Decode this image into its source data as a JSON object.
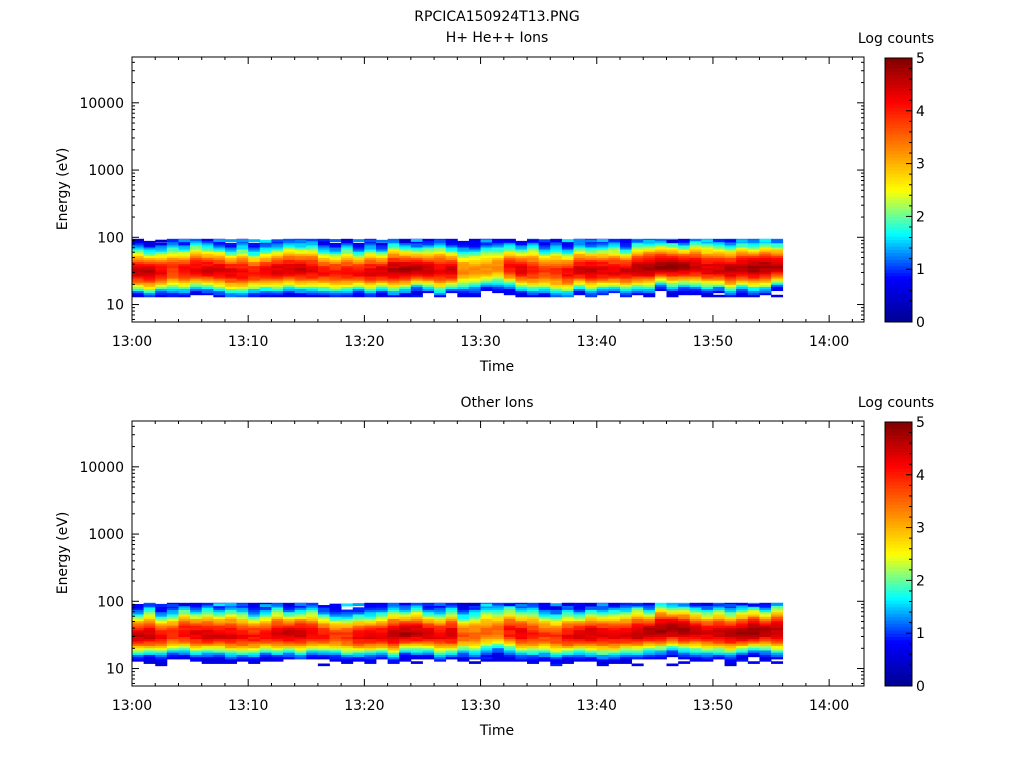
{
  "figure": {
    "title": "RPCICA150924T13.PNG"
  },
  "colormap": {
    "stops": [
      "#00008f",
      "#0000ff",
      "#00ffff",
      "#ffff00",
      "#ff8000",
      "#ff0000",
      "#800000"
    ]
  },
  "chart_data": [
    {
      "type": "heatmap",
      "title": "H+ He++ Ions",
      "xlabel": "Time",
      "ylabel": "Energy (eV)",
      "colorbar_label": "Log counts",
      "colorbar_range": [
        0,
        5
      ],
      "colorbar_ticks": [
        "0",
        "1",
        "2",
        "3",
        "4",
        "5"
      ],
      "x_ticks": [
        "13:00",
        "13:10",
        "13:20",
        "13:30",
        "13:40",
        "13:50",
        "14:00"
      ],
      "xlim_minutes": [
        0,
        63
      ],
      "y_scale": "log",
      "ylim": [
        5.5,
        48000
      ],
      "y_ticks": [
        {
          "value": 10,
          "label": "10"
        },
        {
          "value": 100,
          "label": "100"
        },
        {
          "value": 1000,
          "label": "1000"
        },
        {
          "value": 10000,
          "label": "10000"
        }
      ],
      "grid": false,
      "data_time_range_minutes": [
        0,
        56
      ],
      "data_energy_range_eV": [
        13,
        95
      ],
      "profile_peak_energy_eV": [
        30,
        30,
        30,
        32,
        33,
        33,
        32,
        32,
        31,
        30,
        30,
        31,
        32,
        33,
        33,
        32,
        31,
        31,
        30,
        30,
        30,
        31,
        32,
        33,
        34,
        33,
        32,
        32,
        32,
        32,
        35,
        36,
        35,
        33,
        32,
        32,
        30,
        30,
        32,
        33,
        32,
        31,
        32,
        33,
        35,
        37,
        38,
        37,
        36,
        34,
        33,
        33,
        34,
        35,
        36,
        36
      ],
      "profile_peak_log_counts": [
        4.5,
        4.6,
        4.3,
        3.9,
        4.2,
        4.3,
        4.4,
        4.4,
        4.3,
        4.2,
        4.1,
        4.2,
        4.4,
        4.5,
        4.5,
        4.3,
        4.1,
        4.0,
        4.0,
        4.2,
        4.3,
        4.4,
        4.6,
        4.7,
        4.6,
        4.5,
        4.3,
        4.5,
        3.3,
        3.3,
        3.3,
        3.3,
        4.1,
        4.3,
        4.0,
        3.8,
        3.9,
        4.2,
        4.4,
        4.5,
        4.4,
        4.3,
        4.4,
        4.6,
        4.7,
        4.8,
        4.8,
        4.7,
        4.5,
        4.4,
        4.5,
        4.6,
        4.7,
        4.8,
        4.7,
        4.6
      ]
    },
    {
      "type": "heatmap",
      "title": "Other Ions",
      "xlabel": "Time",
      "ylabel": "Energy (eV)",
      "colorbar_label": "Log counts",
      "colorbar_range": [
        0,
        5
      ],
      "colorbar_ticks": [
        "0",
        "1",
        "2",
        "3",
        "4",
        "5"
      ],
      "x_ticks": [
        "13:00",
        "13:10",
        "13:20",
        "13:30",
        "13:40",
        "13:50",
        "14:00"
      ],
      "xlim_minutes": [
        0,
        63
      ],
      "y_scale": "log",
      "ylim": [
        5.5,
        48000
      ],
      "y_ticks": [
        {
          "value": 10,
          "label": "10"
        },
        {
          "value": 100,
          "label": "100"
        },
        {
          "value": 1000,
          "label": "1000"
        },
        {
          "value": 10000,
          "label": "10000"
        }
      ],
      "grid": false,
      "data_time_range_minutes": [
        0,
        56
      ],
      "data_energy_range_eV": [
        11,
        95
      ],
      "profile_peak_energy_eV": [
        31,
        31,
        30,
        32,
        33,
        33,
        32,
        32,
        31,
        30,
        30,
        31,
        32,
        33,
        33,
        32,
        31,
        31,
        30,
        30,
        30,
        31,
        32,
        33,
        34,
        33,
        32,
        32,
        32,
        32,
        35,
        36,
        35,
        33,
        32,
        32,
        30,
        30,
        32,
        33,
        32,
        31,
        32,
        33,
        35,
        37,
        38,
        37,
        36,
        34,
        33,
        33,
        34,
        35,
        36,
        36
      ],
      "profile_peak_log_counts": [
        4.5,
        4.5,
        4.2,
        3.9,
        4.2,
        4.3,
        4.4,
        4.4,
        4.3,
        4.2,
        4.1,
        4.2,
        4.4,
        4.5,
        4.5,
        4.3,
        4.1,
        3.8,
        3.9,
        4.2,
        4.3,
        4.4,
        4.6,
        4.7,
        4.6,
        4.5,
        4.3,
        4.5,
        3.6,
        3.5,
        3.5,
        3.5,
        4.1,
        4.3,
        4.0,
        3.8,
        3.9,
        4.2,
        4.4,
        4.5,
        4.4,
        4.3,
        4.4,
        4.6,
        4.7,
        4.8,
        4.8,
        4.7,
        4.5,
        4.4,
        4.5,
        4.6,
        4.7,
        4.8,
        4.7,
        4.6
      ]
    }
  ]
}
